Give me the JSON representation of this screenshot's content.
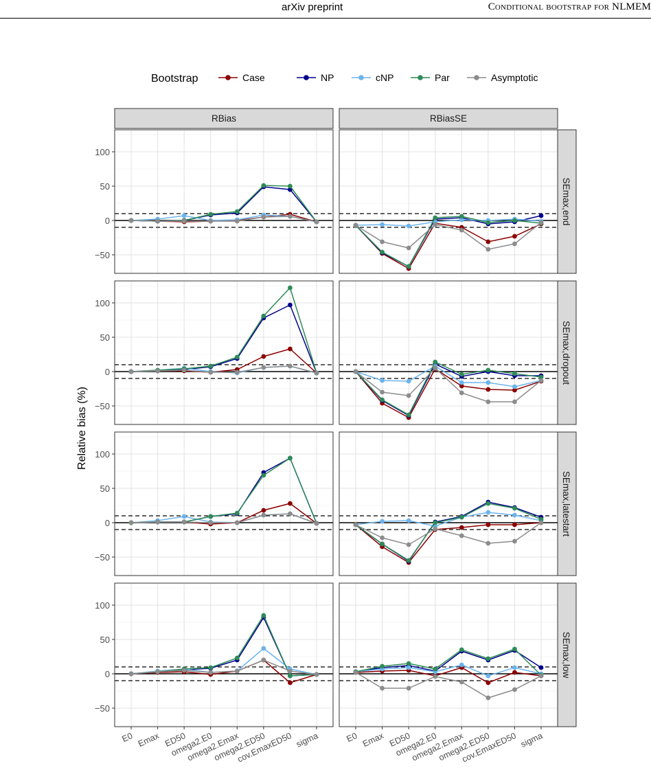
{
  "header": {
    "center": "arXiv preprint",
    "right": "Conditional bootstrap for NLMEM"
  },
  "chart_data": {
    "type": "line",
    "legend": {
      "title": "Bootstrap",
      "placement": "top",
      "items": [
        "Case",
        "NP",
        "cNP",
        "Par",
        "Asymptotic"
      ]
    },
    "colors": {
      "Case": "#8B0000",
      "NP": "#00008B",
      "cNP": "#6CB4EE",
      "Par": "#2E8B57",
      "Asymptotic": "#8C8C8C"
    },
    "ylabel": "Relative bias (%)",
    "ylim": [
      -77,
      132
    ],
    "yticks": [
      -50,
      0,
      50,
      100
    ],
    "x": [
      "E0",
      "Emax",
      "ED50",
      "omega2.E0",
      "omega2.Emax",
      "omega2.ED50",
      "cov.EmaxED50",
      "sigma"
    ],
    "reference_lines": {
      "solid": 0,
      "dashed": [
        10,
        -10
      ]
    },
    "grid": true,
    "col_facets": [
      "RBias",
      "RBiasSE"
    ],
    "row_facets": [
      "SEmax,end",
      "SEmax,dropout",
      "SEmax,latestart",
      "SEmax,low"
    ],
    "panels": [
      {
        "row": "SEmax,end",
        "col": "RBias",
        "series": [
          {
            "name": "Case",
            "values": [
              0,
              -1,
              -2,
              -1,
              0,
              5,
              9,
              -2
            ]
          },
          {
            "name": "NP",
            "values": [
              0,
              -1,
              0,
              8,
              11,
              49,
              45,
              -2
            ]
          },
          {
            "name": "cNP",
            "values": [
              0,
              2,
              7,
              0,
              1,
              8,
              6,
              -2
            ]
          },
          {
            "name": "Par",
            "values": [
              0,
              -1,
              0,
              9,
              13,
              51,
              50,
              -2
            ]
          },
          {
            "name": "Asymptotic",
            "values": [
              0,
              -1,
              -1,
              -1,
              -1,
              5,
              6,
              -2
            ]
          }
        ]
      },
      {
        "row": "SEmax,end",
        "col": "RBiasSE",
        "series": [
          {
            "name": "Case",
            "values": [
              -7,
              -48,
              -70,
              -4,
              -10,
              -31,
              -23,
              -5
            ]
          },
          {
            "name": "NP",
            "values": [
              -7,
              -47,
              -67,
              2,
              4,
              -5,
              -2,
              7
            ]
          },
          {
            "name": "cNP",
            "values": [
              -7,
              -6,
              -8,
              -2,
              1,
              0,
              2,
              -1
            ]
          },
          {
            "name": "Par",
            "values": [
              -7,
              -46,
              -67,
              4,
              6,
              -3,
              0,
              -4
            ]
          },
          {
            "name": "Asymptotic",
            "values": [
              -7,
              -31,
              -40,
              -6,
              -14,
              -42,
              -34,
              -3
            ]
          }
        ]
      },
      {
        "row": "SEmax,dropout",
        "col": "RBias",
        "series": [
          {
            "name": "Case",
            "values": [
              0,
              1,
              1,
              -1,
              3,
              22,
              33,
              -2
            ]
          },
          {
            "name": "NP",
            "values": [
              0,
              1,
              3,
              7,
              19,
              78,
              97,
              -2
            ]
          },
          {
            "name": "cNP",
            "values": [
              0,
              2,
              5,
              0,
              -2,
              6,
              8,
              -2
            ]
          },
          {
            "name": "Par",
            "values": [
              0,
              2,
              4,
              8,
              21,
              81,
              122,
              -2
            ]
          },
          {
            "name": "Asymptotic",
            "values": [
              0,
              1,
              2,
              -1,
              -1,
              6,
              8,
              -2
            ]
          }
        ]
      },
      {
        "row": "SEmax,dropout",
        "col": "RBiasSE",
        "series": [
          {
            "name": "Case",
            "values": [
              0,
              -46,
              -67,
              4,
              -21,
              -26,
              -27,
              -14
            ]
          },
          {
            "name": "NP",
            "values": [
              0,
              -42,
              -64,
              11,
              -7,
              0,
              -6,
              -6
            ]
          },
          {
            "name": "cNP",
            "values": [
              0,
              -13,
              -14,
              8,
              -16,
              -16,
              -22,
              -13
            ]
          },
          {
            "name": "Par",
            "values": [
              0,
              -41,
              -63,
              14,
              -4,
              2,
              -3,
              -8
            ]
          },
          {
            "name": "Asymptotic",
            "values": [
              0,
              -30,
              -35,
              5,
              -31,
              -44,
              -44,
              -13
            ]
          }
        ]
      },
      {
        "row": "SEmax,latestart",
        "col": "RBias",
        "series": [
          {
            "name": "Case",
            "values": [
              0,
              1,
              1,
              -2,
              0,
              18,
              28,
              -1
            ]
          },
          {
            "name": "NP",
            "values": [
              0,
              1,
              1,
              9,
              13,
              73,
              94,
              -1
            ]
          },
          {
            "name": "cNP",
            "values": [
              0,
              3,
              9,
              1,
              0,
              11,
              13,
              -1
            ]
          },
          {
            "name": "Par",
            "values": [
              0,
              1,
              1,
              9,
              14,
              69,
              94,
              -1
            ]
          },
          {
            "name": "Asymptotic",
            "values": [
              0,
              1,
              1,
              0,
              0,
              11,
              13,
              -1
            ]
          }
        ]
      },
      {
        "row": "SEmax,latestart",
        "col": "RBiasSE",
        "series": [
          {
            "name": "Case",
            "values": [
              -3,
              -35,
              -58,
              -10,
              -7,
              -3,
              -3,
              0
            ]
          },
          {
            "name": "NP",
            "values": [
              -3,
              -31,
              -56,
              1,
              9,
              30,
              22,
              8
            ]
          },
          {
            "name": "cNP",
            "values": [
              -3,
              2,
              3,
              -5,
              8,
              15,
              11,
              3
            ]
          },
          {
            "name": "Par",
            "values": [
              -3,
              -31,
              -55,
              0,
              8,
              28,
              21,
              5
            ]
          },
          {
            "name": "Asymptotic",
            "values": [
              -3,
              -22,
              -32,
              -9,
              -19,
              -30,
              -27,
              0
            ]
          }
        ]
      },
      {
        "row": "SEmax,low",
        "col": "RBias",
        "series": [
          {
            "name": "Case",
            "values": [
              0,
              2,
              3,
              -1,
              4,
              20,
              -13,
              -1
            ]
          },
          {
            "name": "NP",
            "values": [
              0,
              3,
              6,
              8,
              20,
              82,
              -3,
              -1
            ]
          },
          {
            "name": "cNP",
            "values": [
              0,
              4,
              7,
              2,
              4,
              37,
              7,
              -1
            ]
          },
          {
            "name": "Par",
            "values": [
              0,
              3,
              7,
              9,
              23,
              85,
              -3,
              -1
            ]
          },
          {
            "name": "Asymptotic",
            "values": [
              0,
              3,
              5,
              2,
              4,
              20,
              4,
              -1
            ]
          }
        ]
      },
      {
        "row": "SEmax,low",
        "col": "RBiasSE",
        "series": [
          {
            "name": "Case",
            "values": [
              2,
              4,
              5,
              -3,
              9,
              -13,
              2,
              -3
            ]
          },
          {
            "name": "NP",
            "values": [
              3,
              9,
              12,
              4,
              33,
              20,
              34,
              9
            ]
          },
          {
            "name": "cNP",
            "values": [
              3,
              7,
              9,
              3,
              13,
              -3,
              9,
              0
            ]
          },
          {
            "name": "Par",
            "values": [
              3,
              11,
              15,
              7,
              35,
              22,
              36,
              -2
            ]
          },
          {
            "name": "Asymptotic",
            "values": [
              2,
              -21,
              -21,
              -4,
              -12,
              -35,
              -23,
              -3
            ]
          }
        ]
      }
    ]
  }
}
